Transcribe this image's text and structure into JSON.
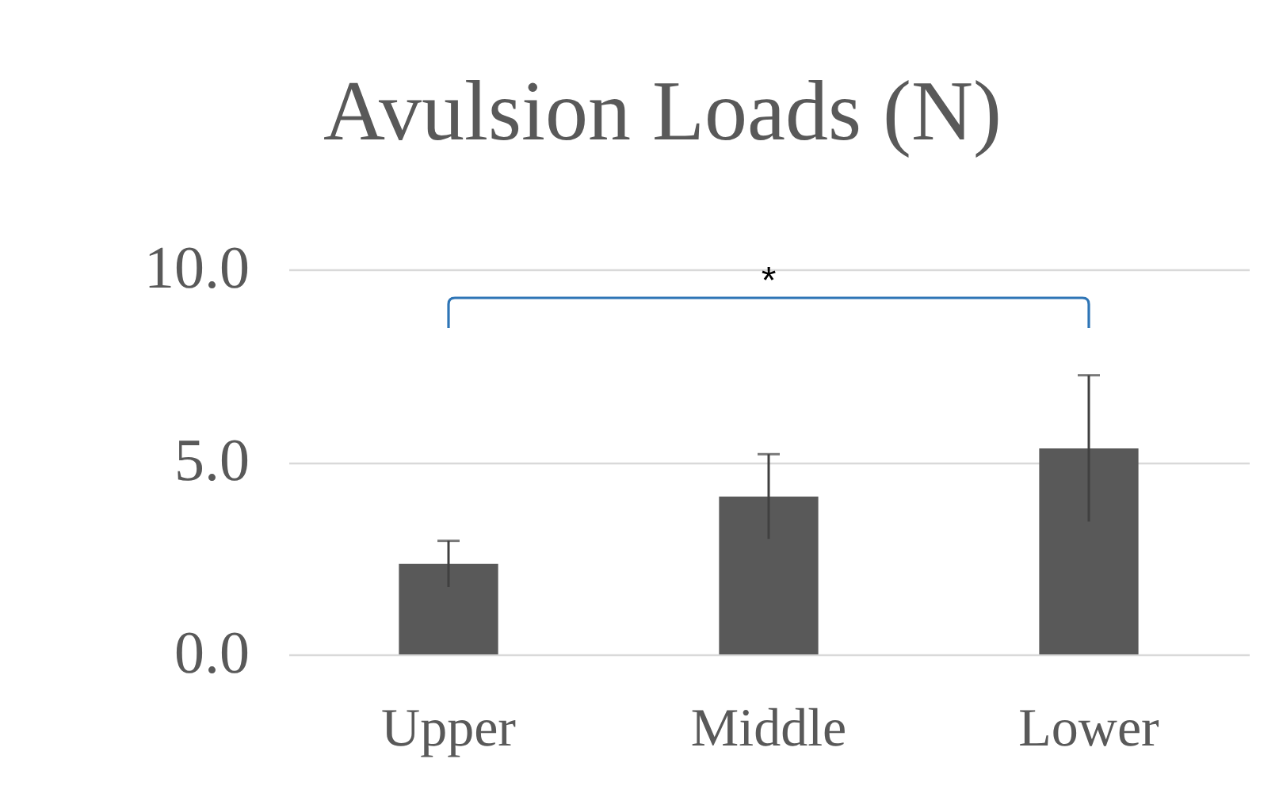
{
  "chart_data": {
    "type": "bar",
    "title": "Avulsion Loads (N)",
    "categories": [
      "Upper",
      "Middle",
      "Lower"
    ],
    "values": [
      2.35,
      4.1,
      5.35
    ],
    "errors": [
      0.6,
      1.1,
      1.9
    ],
    "color": "#595959",
    "ylim": [
      0,
      10
    ],
    "yticks": [
      {
        "value": 0,
        "label": "0.0"
      },
      {
        "value": 5,
        "label": "5.0"
      },
      {
        "value": 10,
        "label": "10.0"
      }
    ],
    "grid": "y",
    "annotations": [
      "*"
    ]
  }
}
